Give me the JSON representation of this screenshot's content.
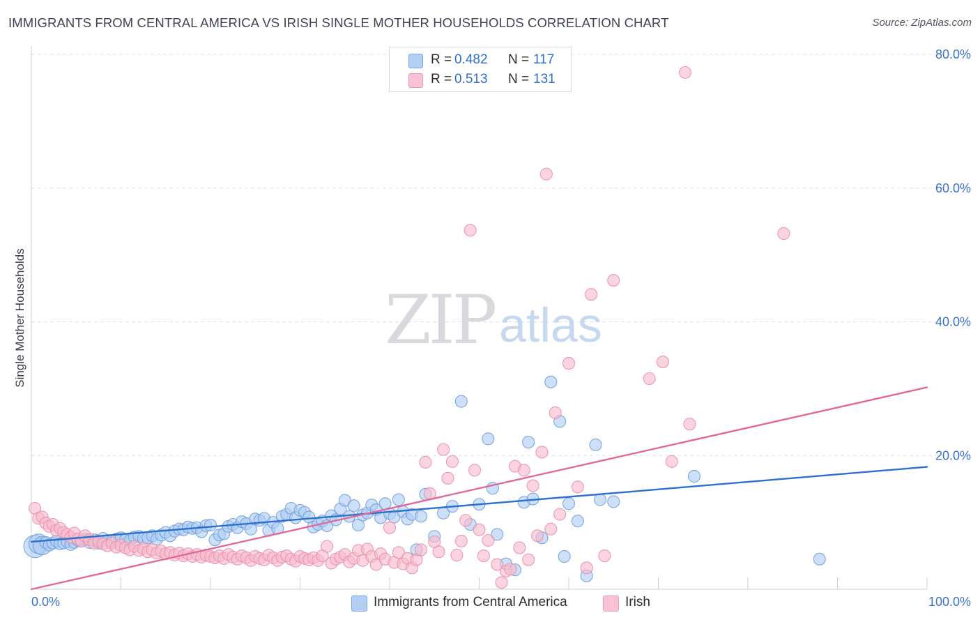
{
  "header": {
    "title": "IMMIGRANTS FROM CENTRAL AMERICA VS IRISH SINGLE MOTHER HOUSEHOLDS CORRELATION CHART",
    "source": "Source: ZipAtlas.com"
  },
  "watermark": {
    "part1": "ZIP",
    "part2": "atlas"
  },
  "legend": {
    "series": [
      {
        "r_label": "R =",
        "r_value": "0.482",
        "n_label": "N =",
        "n_value": "117"
      },
      {
        "r_label": "R =",
        "r_value": "0.513",
        "n_label": "N =",
        "n_value": "131"
      }
    ]
  },
  "colors": {
    "blue_fill": "#aecdf3",
    "blue_stroke": "#6f9fdd",
    "blue_line": "#2b6fcf",
    "pink_fill": "#f7bccd",
    "pink_stroke": "#ea8eaa",
    "pink_line": "#e0699a",
    "tick_label": "#3a72c9",
    "grid": "#dde0e6"
  },
  "chart_data": {
    "type": "scatter",
    "title": "IMMIGRANTS FROM CENTRAL AMERICA VS IRISH SINGLE MOTHER HOUSEHOLDS CORRELATION CHART",
    "xlabel": "",
    "ylabel": "Single Mother Households",
    "xlim": [
      0,
      100
    ],
    "ylim": [
      0,
      80
    ],
    "x_tick_labels": [
      "0.0%",
      "100.0%"
    ],
    "y_ticks": [
      20,
      40,
      60,
      80
    ],
    "y_tick_labels": [
      "20.0%",
      "40.0%",
      "60.0%",
      "80.0%"
    ],
    "grid": true,
    "legend_position": "top-center",
    "series": [
      {
        "name": "Immigrants from Central America",
        "trend": {
          "x": [
            0,
            100
          ],
          "y": [
            7.1,
            18.3
          ]
        },
        "points": [
          [
            0.4,
            6.4
          ],
          [
            0.8,
            6.8
          ],
          [
            1.2,
            6.5
          ],
          [
            1.6,
            7.0
          ],
          [
            2.0,
            6.6
          ],
          [
            2.4,
            6.9
          ],
          [
            2.8,
            7.2
          ],
          [
            3.2,
            6.8
          ],
          [
            3.6,
            6.9
          ],
          [
            4.0,
            7.1
          ],
          [
            4.4,
            6.7
          ],
          [
            4.8,
            7.0
          ],
          [
            5.2,
            7.3
          ],
          [
            5.6,
            7.2
          ],
          [
            6.0,
            7.5
          ],
          [
            6.5,
            7.0
          ],
          [
            7.0,
            7.4
          ],
          [
            7.5,
            6.9
          ],
          [
            8.0,
            7.6
          ],
          [
            8.5,
            7.3
          ],
          [
            9.0,
            7.2
          ],
          [
            9.5,
            7.5
          ],
          [
            10.0,
            7.7
          ],
          [
            10.5,
            7.4
          ],
          [
            11.0,
            7.3
          ],
          [
            11.5,
            7.8
          ],
          [
            12.0,
            7.9
          ],
          [
            12.5,
            7.6
          ],
          [
            13.0,
            7.7
          ],
          [
            13.5,
            8.0
          ],
          [
            14.0,
            7.5
          ],
          [
            14.5,
            8.1
          ],
          [
            15.0,
            8.5
          ],
          [
            15.5,
            8.0
          ],
          [
            16.0,
            8.7
          ],
          [
            16.5,
            9.0
          ],
          [
            17.0,
            8.9
          ],
          [
            17.5,
            9.3
          ],
          [
            18.0,
            9.1
          ],
          [
            18.5,
            9.2
          ],
          [
            19.0,
            8.6
          ],
          [
            19.5,
            9.5
          ],
          [
            20.0,
            9.6
          ],
          [
            20.5,
            7.4
          ],
          [
            21.0,
            8.1
          ],
          [
            21.5,
            8.3
          ],
          [
            22.0,
            9.4
          ],
          [
            22.5,
            9.7
          ],
          [
            23.0,
            9.2
          ],
          [
            23.5,
            10.1
          ],
          [
            24.0,
            9.8
          ],
          [
            24.5,
            9.0
          ],
          [
            25.0,
            10.5
          ],
          [
            25.5,
            10.3
          ],
          [
            26.0,
            10.6
          ],
          [
            26.5,
            8.8
          ],
          [
            27.0,
            10.0
          ],
          [
            27.5,
            9.1
          ],
          [
            28.0,
            10.9
          ],
          [
            28.5,
            11.2
          ],
          [
            29.0,
            12.1
          ],
          [
            29.5,
            10.7
          ],
          [
            30.0,
            11.8
          ],
          [
            30.5,
            11.5
          ],
          [
            31.0,
            10.8
          ],
          [
            31.5,
            9.3
          ],
          [
            32.0,
            9.7
          ],
          [
            32.5,
            10.2
          ],
          [
            33.0,
            9.5
          ],
          [
            33.5,
            11.0
          ],
          [
            34.0,
            10.4
          ],
          [
            34.5,
            12.0
          ],
          [
            35.0,
            13.3
          ],
          [
            35.5,
            10.9
          ],
          [
            36.0,
            12.5
          ],
          [
            36.5,
            9.6
          ],
          [
            37.0,
            11.1
          ],
          [
            37.5,
            11.4
          ],
          [
            38.0,
            12.6
          ],
          [
            38.5,
            11.9
          ],
          [
            39.0,
            10.7
          ],
          [
            39.5,
            12.8
          ],
          [
            40.0,
            11.3
          ],
          [
            40.5,
            10.8
          ],
          [
            41.0,
            13.4
          ],
          [
            41.5,
            11.6
          ],
          [
            42.0,
            10.5
          ],
          [
            42.5,
            11.2
          ],
          [
            43.0,
            5.9
          ],
          [
            43.5,
            10.9
          ],
          [
            44.0,
            14.2
          ],
          [
            45.0,
            7.9
          ],
          [
            46.0,
            11.4
          ],
          [
            47.0,
            12.4
          ],
          [
            48.0,
            28.1
          ],
          [
            49.0,
            9.7
          ],
          [
            50.0,
            12.7
          ],
          [
            51.0,
            22.5
          ],
          [
            51.5,
            15.1
          ],
          [
            52.0,
            8.2
          ],
          [
            53.0,
            3.8
          ],
          [
            54.0,
            2.9
          ],
          [
            55.0,
            13.0
          ],
          [
            55.5,
            22.0
          ],
          [
            56.0,
            13.5
          ],
          [
            57.0,
            7.7
          ],
          [
            58.0,
            31.0
          ],
          [
            59.0,
            25.1
          ],
          [
            59.5,
            4.9
          ],
          [
            60.0,
            12.8
          ],
          [
            61.0,
            10.2
          ],
          [
            62.0,
            2.0
          ],
          [
            63.0,
            21.6
          ],
          [
            63.5,
            13.4
          ],
          [
            65.0,
            13.1
          ],
          [
            74.0,
            16.9
          ],
          [
            88.0,
            4.5
          ]
        ],
        "sizes": {
          "0": 16,
          "1": 14,
          "2": 13
        }
      },
      {
        "name": "Irish",
        "trend": {
          "x": [
            0,
            100
          ],
          "y": [
            0.0,
            30.2
          ]
        },
        "points": [
          [
            0.4,
            12.1
          ],
          [
            0.8,
            10.6
          ],
          [
            1.2,
            10.8
          ],
          [
            1.6,
            9.9
          ],
          [
            2.0,
            9.4
          ],
          [
            2.4,
            9.7
          ],
          [
            2.8,
            8.8
          ],
          [
            3.2,
            9.1
          ],
          [
            3.6,
            8.5
          ],
          [
            4.0,
            8.2
          ],
          [
            4.4,
            7.8
          ],
          [
            4.8,
            8.4
          ],
          [
            5.2,
            7.5
          ],
          [
            5.6,
            7.2
          ],
          [
            6.0,
            8.0
          ],
          [
            6.5,
            7.4
          ],
          [
            7.0,
            6.9
          ],
          [
            7.5,
            7.2
          ],
          [
            8.0,
            6.8
          ],
          [
            8.5,
            6.5
          ],
          [
            9.0,
            6.9
          ],
          [
            9.5,
            6.3
          ],
          [
            10.0,
            6.6
          ],
          [
            10.5,
            6.2
          ],
          [
            11.0,
            5.9
          ],
          [
            11.5,
            6.4
          ],
          [
            12.0,
            5.8
          ],
          [
            12.5,
            6.1
          ],
          [
            13.0,
            5.6
          ],
          [
            13.5,
            5.9
          ],
          [
            14.0,
            5.4
          ],
          [
            14.5,
            5.7
          ],
          [
            15.0,
            5.3
          ],
          [
            15.5,
            5.5
          ],
          [
            16.0,
            5.1
          ],
          [
            16.5,
            5.4
          ],
          [
            17.0,
            5.0
          ],
          [
            17.5,
            5.3
          ],
          [
            18.0,
            4.9
          ],
          [
            18.5,
            5.2
          ],
          [
            19.0,
            4.8
          ],
          [
            19.5,
            5.1
          ],
          [
            20.0,
            4.9
          ],
          [
            20.5,
            4.7
          ],
          [
            21.0,
            5.0
          ],
          [
            21.5,
            4.6
          ],
          [
            22.0,
            5.2
          ],
          [
            22.5,
            4.8
          ],
          [
            23.0,
            4.5
          ],
          [
            23.5,
            5.0
          ],
          [
            24.0,
            4.7
          ],
          [
            24.5,
            4.3
          ],
          [
            25.0,
            4.9
          ],
          [
            25.5,
            4.6
          ],
          [
            26.0,
            4.4
          ],
          [
            26.5,
            5.1
          ],
          [
            27.0,
            4.7
          ],
          [
            27.5,
            4.3
          ],
          [
            28.0,
            4.8
          ],
          [
            28.5,
            5.0
          ],
          [
            29.0,
            4.5
          ],
          [
            29.5,
            4.2
          ],
          [
            30.0,
            4.9
          ],
          [
            30.5,
            4.6
          ],
          [
            31.0,
            4.4
          ],
          [
            31.5,
            4.7
          ],
          [
            32.0,
            4.3
          ],
          [
            32.5,
            5.0
          ],
          [
            33.0,
            6.4
          ],
          [
            33.5,
            3.9
          ],
          [
            34.0,
            4.5
          ],
          [
            34.5,
            4.8
          ],
          [
            35.0,
            5.2
          ],
          [
            35.5,
            4.1
          ],
          [
            36.0,
            4.6
          ],
          [
            36.5,
            5.8
          ],
          [
            37.0,
            4.3
          ],
          [
            37.5,
            6.0
          ],
          [
            38.0,
            4.9
          ],
          [
            38.5,
            3.7
          ],
          [
            39.0,
            5.3
          ],
          [
            39.5,
            4.5
          ],
          [
            40.0,
            9.2
          ],
          [
            40.5,
            4.0
          ],
          [
            41.0,
            5.5
          ],
          [
            41.5,
            3.8
          ],
          [
            42.0,
            4.6
          ],
          [
            42.5,
            3.2
          ],
          [
            43.0,
            4.4
          ],
          [
            43.5,
            5.9
          ],
          [
            44.0,
            19.0
          ],
          [
            44.5,
            14.3
          ],
          [
            45.0,
            7.1
          ],
          [
            45.5,
            5.6
          ],
          [
            46.0,
            20.9
          ],
          [
            46.5,
            16.6
          ],
          [
            47.0,
            19.1
          ],
          [
            47.5,
            5.1
          ],
          [
            48.0,
            7.2
          ],
          [
            48.5,
            10.3
          ],
          [
            49.0,
            53.7
          ],
          [
            49.5,
            17.8
          ],
          [
            50.0,
            8.9
          ],
          [
            50.5,
            5.0
          ],
          [
            51.0,
            7.3
          ],
          [
            52.0,
            3.7
          ],
          [
            52.5,
            1.0
          ],
          [
            53.0,
            2.7
          ],
          [
            53.5,
            3.0
          ],
          [
            54.0,
            18.4
          ],
          [
            54.5,
            6.2
          ],
          [
            55.0,
            17.8
          ],
          [
            55.5,
            4.4
          ],
          [
            56.0,
            15.5
          ],
          [
            56.5,
            8.0
          ],
          [
            57.0,
            20.5
          ],
          [
            57.5,
            62.1
          ],
          [
            58.0,
            9.0
          ],
          [
            58.5,
            26.4
          ],
          [
            59.0,
            11.2
          ],
          [
            60.0,
            33.8
          ],
          [
            61.0,
            15.3
          ],
          [
            62.0,
            3.2
          ],
          [
            62.5,
            44.1
          ],
          [
            64.0,
            5.0
          ],
          [
            65.0,
            46.2
          ],
          [
            69.0,
            31.5
          ],
          [
            70.5,
            34.0
          ],
          [
            71.5,
            19.1
          ],
          [
            73.0,
            77.3
          ],
          [
            73.5,
            24.7
          ],
          [
            84.0,
            53.2
          ]
        ],
        "sizes": {}
      }
    ]
  }
}
